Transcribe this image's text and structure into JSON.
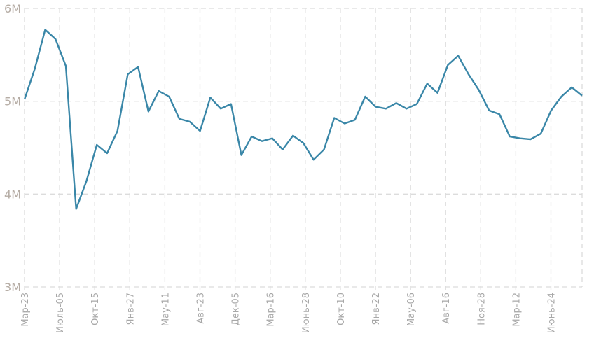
{
  "chart_data": {
    "type": "line",
    "title": "",
    "xlabel": "",
    "ylabel": "",
    "ylim": [
      3000000,
      6000000
    ],
    "y_ticks": [
      {
        "value": 6000000,
        "label": "6M"
      },
      {
        "value": 5000000,
        "label": "5M"
      },
      {
        "value": 4000000,
        "label": "4M"
      },
      {
        "value": 3000000,
        "label": "3M"
      }
    ],
    "x_tick_labels": [
      "Мар-23",
      "Июль-05",
      "Окт-15",
      "Янв-27",
      "Мау-11",
      "Авг-23",
      "Дек-05",
      "Мар-16",
      "Июнь-28",
      "Окт-10",
      "Янв-22",
      "Мау-06",
      "Авг-16",
      "Ноя-28",
      "Мар-12",
      "Июнь-24"
    ],
    "grid": true,
    "line_color": "#3a87a8",
    "series": [
      {
        "name": "value",
        "values": [
          5.02,
          5.35,
          5.77,
          5.67,
          5.38,
          3.84,
          4.14,
          4.53,
          4.44,
          4.68,
          5.29,
          5.37,
          4.89,
          5.11,
          5.05,
          4.81,
          4.78,
          4.68,
          5.04,
          4.92,
          4.97,
          4.42,
          4.62,
          4.57,
          4.6,
          4.48,
          4.63,
          4.55,
          4.37,
          4.48,
          4.82,
          4.76,
          4.8,
          5.05,
          4.94,
          4.92,
          4.98,
          4.92,
          4.97,
          5.19,
          5.09,
          5.39,
          5.49,
          5.29,
          5.12,
          4.9,
          4.86,
          4.62,
          4.6,
          4.59,
          4.65,
          4.9,
          5.05,
          5.15,
          5.06
        ],
        "unit": "millions"
      }
    ]
  }
}
